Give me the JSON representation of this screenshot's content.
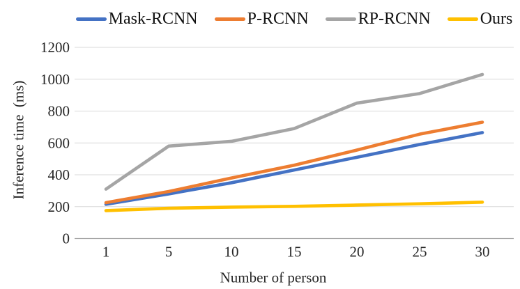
{
  "chart_data": {
    "type": "line",
    "title": "",
    "xlabel": "Number of person",
    "ylabel": "Inference time  (ms)",
    "categories": [
      "1",
      "5",
      "10",
      "15",
      "20",
      "25",
      "30"
    ],
    "series": [
      {
        "name": "Mask-RCNN",
        "color": "#4472C4",
        "values": [
          215,
          280,
          350,
          430,
          510,
          590,
          665
        ]
      },
      {
        "name": "P-RCNN",
        "color": "#ED7D31",
        "values": [
          225,
          295,
          380,
          460,
          555,
          655,
          730
        ]
      },
      {
        "name": "RP-RCNN",
        "color": "#A5A5A5",
        "values": [
          310,
          580,
          610,
          690,
          850,
          910,
          1030
        ]
      },
      {
        "name": "Ours",
        "color": "#FFC000",
        "values": [
          175,
          190,
          197,
          202,
          210,
          218,
          228
        ]
      }
    ],
    "ylim": [
      0,
      1200
    ],
    "ytick_step": 200,
    "ytick_labels": [
      "0",
      "200",
      "400",
      "600",
      "800",
      "1000",
      "1200"
    ],
    "grid": true,
    "legend_position": "top"
  },
  "colors": {
    "background": "#ffffff",
    "gridline": "#d9d9d9",
    "axis_line": "#a6a6a6",
    "text": "#262626"
  }
}
